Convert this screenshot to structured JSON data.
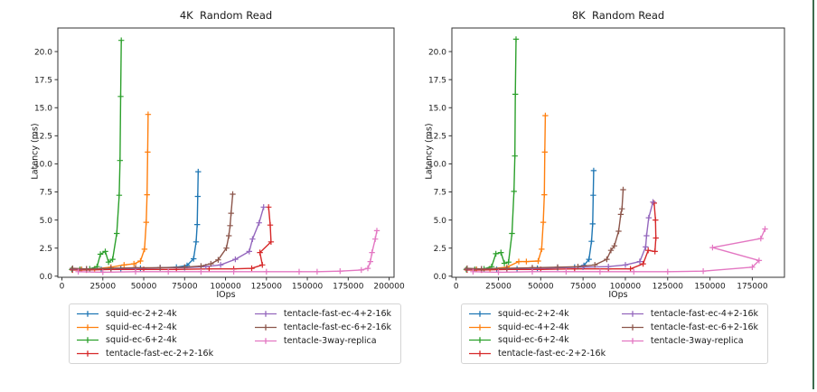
{
  "page": {
    "background_color": "#ffffff",
    "right_accent_bar_color": "#3e6b4e",
    "text_color": "#1a1a1a",
    "spine_color": "#333333",
    "legend_border_color": "#d4d4d4"
  },
  "chart_data": [
    {
      "type": "line",
      "title": "4K  Random Read",
      "xlabel": "IOps",
      "ylabel": "Latency (ms)",
      "xlim": [
        -2500,
        203000
      ],
      "ylim": [
        -0.1,
        22.1
      ],
      "xticks": [
        0,
        25000,
        50000,
        75000,
        100000,
        125000,
        150000,
        175000,
        200000
      ],
      "yticks": [
        0.0,
        2.5,
        5.0,
        7.5,
        10.0,
        12.5,
        15.0,
        17.5,
        20.0
      ],
      "grid": false,
      "marker": "plus",
      "legend_position": "below",
      "series": [
        {
          "name": "squid-ec-2+2-4k",
          "color": "#1f77b4",
          "x": [
            6500,
            12000,
            24000,
            36000,
            48000,
            60000,
            70000,
            76500,
            80500,
            82000,
            82700,
            83000,
            83300
          ],
          "y": [
            0.65,
            0.6,
            0.6,
            0.65,
            0.7,
            0.75,
            0.8,
            0.95,
            1.55,
            3.05,
            4.6,
            7.1,
            9.3
          ]
        },
        {
          "name": "squid-ec-4+2-4k",
          "color": "#ff7f0e",
          "x": [
            6500,
            12000,
            20000,
            30000,
            38000,
            44000,
            48000,
            50500,
            51500,
            52000,
            52400,
            52700
          ],
          "y": [
            0.65,
            0.6,
            0.65,
            0.8,
            1.0,
            1.1,
            1.35,
            2.4,
            4.8,
            7.25,
            11.05,
            14.4
          ]
        },
        {
          "name": "squid-ec-6+2-4k",
          "color": "#2ca02c",
          "x": [
            6000,
            11000,
            17000,
            21500,
            23500,
            26500,
            28500,
            31000,
            33500,
            35000,
            35500,
            35900,
            36300
          ],
          "y": [
            0.6,
            0.6,
            0.65,
            0.85,
            1.95,
            2.2,
            1.25,
            1.5,
            3.8,
            7.2,
            10.3,
            16.0,
            21.0
          ]
        },
        {
          "name": "tentacle-fast-ec-2+2-16k",
          "color": "#d62728",
          "x": [
            6500,
            15000,
            30000,
            50000,
            70000,
            90000,
            105000,
            116000,
            122500,
            121000,
            127800,
            127300,
            126300
          ],
          "y": [
            0.55,
            0.55,
            0.6,
            0.6,
            0.6,
            0.65,
            0.65,
            0.7,
            1.0,
            2.1,
            3.05,
            4.55,
            6.15
          ]
        },
        {
          "name": "tentacle-fast-ec-4+2-16k",
          "color": "#9467bd",
          "x": [
            6500,
            15000,
            30000,
            45000,
            60000,
            75000,
            88000,
            97000,
            106000,
            114500,
            116500,
            120500,
            123300
          ],
          "y": [
            0.65,
            0.65,
            0.7,
            0.7,
            0.75,
            0.75,
            0.85,
            1.0,
            1.5,
            2.2,
            3.3,
            4.75,
            6.15
          ]
        },
        {
          "name": "tentacle-fast-ec-6+2-16k",
          "color": "#8c564b",
          "x": [
            6500,
            15000,
            30000,
            45000,
            60000,
            75000,
            85000,
            91000,
            95500,
            100500,
            102000,
            102800,
            103400,
            104400
          ],
          "y": [
            0.7,
            0.65,
            0.7,
            0.75,
            0.75,
            0.8,
            0.9,
            1.1,
            1.45,
            2.5,
            3.6,
            4.5,
            5.6,
            7.3
          ]
        },
        {
          "name": "tentacle-3way-replica",
          "color": "#e377c2",
          "x": [
            10000,
            25000,
            45000,
            65000,
            85000,
            105000,
            125000,
            145000,
            156000,
            170000,
            183000,
            187000,
            188500,
            189500,
            191500,
            192500
          ],
          "y": [
            0.4,
            0.35,
            0.4,
            0.4,
            0.4,
            0.4,
            0.4,
            0.4,
            0.4,
            0.45,
            0.55,
            0.7,
            1.3,
            2.1,
            3.3,
            4.05
          ]
        }
      ]
    },
    {
      "type": "line",
      "title": "8K  Random Read",
      "xlabel": "IOps",
      "ylabel": "Latency (ms)",
      "xlim": [
        -2500,
        194000
      ],
      "ylim": [
        -0.1,
        22.1
      ],
      "xticks": [
        0,
        25000,
        50000,
        75000,
        100000,
        125000,
        150000,
        175000
      ],
      "yticks": [
        0.0,
        2.5,
        5.0,
        7.5,
        10.0,
        12.5,
        15.0,
        17.5,
        20.0
      ],
      "grid": false,
      "marker": "plus",
      "legend_position": "below",
      "series": [
        {
          "name": "squid-ec-2+2-4k",
          "color": "#1f77b4",
          "x": [
            6500,
            12000,
            24000,
            36000,
            48000,
            60000,
            70000,
            75500,
            78500,
            80000,
            80700,
            81000,
            81300
          ],
          "y": [
            0.65,
            0.6,
            0.6,
            0.65,
            0.7,
            0.75,
            0.8,
            0.95,
            1.5,
            3.1,
            4.65,
            7.2,
            9.4
          ]
        },
        {
          "name": "squid-ec-4+2-4k",
          "color": "#ff7f0e",
          "x": [
            6500,
            12000,
            20000,
            30000,
            37000,
            41500,
            48500,
            50500,
            51500,
            52100,
            52400,
            52700
          ],
          "y": [
            0.65,
            0.6,
            0.65,
            0.8,
            1.3,
            1.3,
            1.35,
            2.4,
            4.8,
            7.25,
            11.05,
            14.3
          ]
        },
        {
          "name": "squid-ec-6+2-4k",
          "color": "#2ca02c",
          "x": [
            6000,
            11000,
            16500,
            21000,
            23500,
            26500,
            28500,
            31000,
            33000,
            34200,
            34700,
            35000,
            35400
          ],
          "y": [
            0.6,
            0.6,
            0.65,
            0.85,
            2.0,
            2.1,
            1.15,
            1.25,
            3.8,
            7.55,
            10.7,
            16.2,
            21.1
          ]
        },
        {
          "name": "tentacle-fast-ec-2+2-16k",
          "color": "#d62728",
          "x": [
            6500,
            15000,
            30000,
            50000,
            70000,
            90000,
            103000,
            110500,
            113500,
            117500,
            118000,
            117800,
            117000
          ],
          "y": [
            0.55,
            0.55,
            0.6,
            0.6,
            0.65,
            0.65,
            0.65,
            1.1,
            2.3,
            2.2,
            3.4,
            5.0,
            6.5
          ]
        },
        {
          "name": "tentacle-fast-ec-4+2-16k",
          "color": "#9467bd",
          "x": [
            6500,
            15000,
            30000,
            45000,
            60000,
            75000,
            90000,
            100000,
            108500,
            112000,
            112500,
            113800,
            116300
          ],
          "y": [
            0.65,
            0.65,
            0.7,
            0.7,
            0.75,
            0.8,
            0.85,
            1.0,
            1.3,
            2.6,
            3.6,
            5.2,
            6.6
          ]
        },
        {
          "name": "tentacle-fast-ec-6+2-16k",
          "color": "#8c564b",
          "x": [
            6500,
            15000,
            30000,
            45000,
            60000,
            72000,
            82000,
            89000,
            91500,
            93500,
            96000,
            97300,
            98000,
            98700
          ],
          "y": [
            0.7,
            0.65,
            0.7,
            0.75,
            0.8,
            0.85,
            1.0,
            1.5,
            2.3,
            2.7,
            4.0,
            5.5,
            6.0,
            7.7
          ]
        },
        {
          "name": "tentacle-3way-replica",
          "color": "#e377c2",
          "x": [
            10000,
            25000,
            45000,
            65000,
            85000,
            105000,
            125000,
            146000,
            175000,
            179000,
            151500,
            180000,
            182500
          ],
          "y": [
            0.4,
            0.35,
            0.4,
            0.4,
            0.4,
            0.4,
            0.4,
            0.45,
            0.8,
            1.4,
            2.55,
            3.35,
            4.2
          ]
        }
      ]
    }
  ]
}
